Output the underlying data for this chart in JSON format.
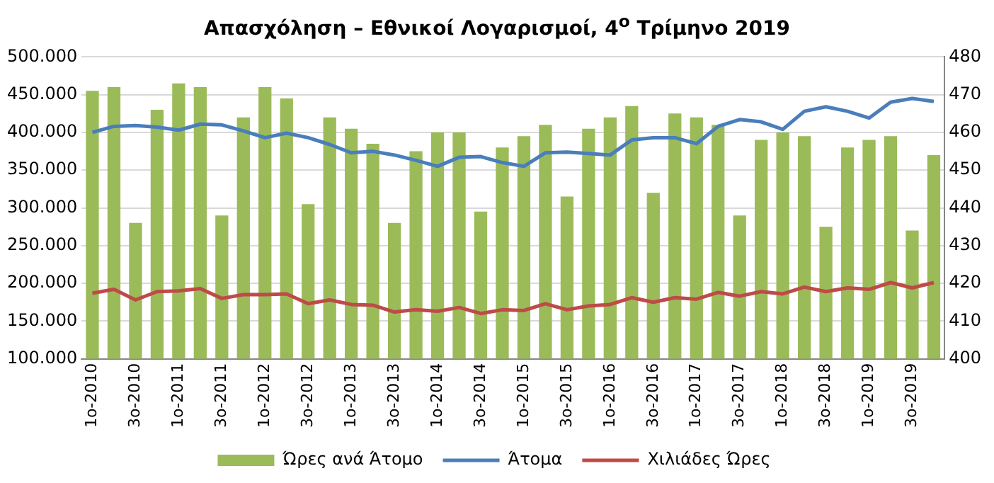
{
  "chart_data": {
    "type": "bar",
    "title": "Απασχόληση – Εθνικοί Λογαρισμοί, 4$^{ο}$ Τρίμηνο 2019",
    "categories": [
      "1ο-2010",
      null,
      "3ο-2010",
      null,
      "1ο-2011",
      null,
      "3ο-2011",
      null,
      "1ο-2012",
      null,
      "3ο-2012",
      null,
      "1ο-2013",
      null,
      "3ο-2013",
      null,
      "1ο-2014",
      null,
      "3ο-2014",
      null,
      "1ο-2015",
      null,
      "3ο-2015",
      null,
      "1ο-2016",
      null,
      "3ο-2016",
      null,
      "1ο-2017",
      null,
      "3ο-2017",
      null,
      "1ο-2018",
      null,
      "3ο-2018",
      null,
      "1ο-2019",
      null,
      "3ο-2019",
      null
    ],
    "series": [
      {
        "name": "Ώρες ανά Άτομο",
        "axis": "y2",
        "color": "#9bbb59",
        "values": [
          471,
          472,
          436,
          466,
          473,
          472,
          438,
          464,
          472,
          469,
          441,
          464,
          461,
          457,
          436,
          455,
          460,
          460,
          439,
          456,
          459,
          462,
          443,
          461,
          464,
          467,
          444,
          465,
          464,
          462,
          438,
          458,
          460,
          459,
          435,
          456,
          458,
          459,
          434,
          454
        ]
      },
      {
        "name": "Άτομα",
        "type": "line",
        "axis": "y",
        "color": "#4a7ebb",
        "values": [
          400000,
          408000,
          409000,
          407000,
          403000,
          411000,
          410000,
          402000,
          393000,
          399000,
          393000,
          384000,
          373000,
          375000,
          370000,
          363000,
          355000,
          367000,
          368000,
          360000,
          355000,
          373000,
          374000,
          372000,
          370000,
          390000,
          393000,
          393000,
          385000,
          408000,
          417000,
          414000,
          404000,
          428000,
          434000,
          428000,
          419000,
          440000,
          445000,
          441000
        ]
      },
      {
        "name": "Χιλιάδες Ώρες",
        "type": "line",
        "axis": "y",
        "color": "#be4b48",
        "values": [
          187000,
          192000,
          178000,
          189000,
          190000,
          193000,
          180000,
          185000,
          185000,
          186000,
          173000,
          178000,
          172000,
          171000,
          162000,
          165000,
          163000,
          168000,
          160000,
          165000,
          164000,
          173000,
          165000,
          170000,
          172000,
          181000,
          175000,
          181000,
          179000,
          188000,
          183000,
          189000,
          186000,
          195000,
          189000,
          194000,
          192000,
          201000,
          194000,
          201000
        ]
      }
    ],
    "ylim": [
      100000,
      500000
    ],
    "yticks": [
      {
        "value": 100000,
        "label": "100.000"
      },
      {
        "value": 150000,
        "label": "150.000"
      },
      {
        "value": 200000,
        "label": "200.000"
      },
      {
        "value": 250000,
        "label": "250.000"
      },
      {
        "value": 300000,
        "label": "300.000"
      },
      {
        "value": 350000,
        "label": "350.000"
      },
      {
        "value": 400000,
        "label": "400.000"
      },
      {
        "value": 450000,
        "label": "450.000"
      },
      {
        "value": 500000,
        "label": "500.000"
      }
    ],
    "y2lim": [
      400,
      480
    ],
    "y2ticks": [
      400,
      410,
      420,
      430,
      440,
      450,
      460,
      470,
      480
    ],
    "grid": "y",
    "legend": "bottom",
    "marker": "none",
    "line_style": "solid"
  }
}
